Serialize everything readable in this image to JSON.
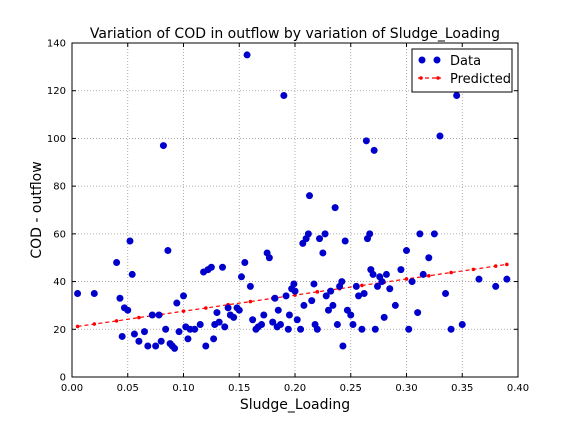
{
  "chart_data": {
    "type": "scatter",
    "title": "Variation of COD in outflow by variation of Sludge_Loading",
    "xlabel": "Sludge_Loading",
    "ylabel": "COD - outflow",
    "xlim": [
      0.0,
      0.4
    ],
    "ylim": [
      0,
      140
    ],
    "xticks": [
      "0.00",
      "0.05",
      "0.10",
      "0.15",
      "0.20",
      "0.25",
      "0.30",
      "0.35",
      "0.40"
    ],
    "yticks": [
      "0",
      "20",
      "40",
      "60",
      "80",
      "100",
      "120",
      "140"
    ],
    "grid": true,
    "legend_position": "top-right",
    "colors": {
      "data": "#0000cc",
      "predicted": "#ff0000"
    },
    "series": [
      {
        "name": "Data",
        "style": "markers",
        "points": [
          [
            0.005,
            35
          ],
          [
            0.02,
            35
          ],
          [
            0.04,
            48
          ],
          [
            0.043,
            33
          ],
          [
            0.045,
            17
          ],
          [
            0.047,
            29
          ],
          [
            0.05,
            28
          ],
          [
            0.052,
            57
          ],
          [
            0.054,
            43
          ],
          [
            0.056,
            18
          ],
          [
            0.06,
            15
          ],
          [
            0.065,
            19
          ],
          [
            0.068,
            13
          ],
          [
            0.072,
            26
          ],
          [
            0.075,
            13
          ],
          [
            0.078,
            26
          ],
          [
            0.08,
            15
          ],
          [
            0.082,
            97
          ],
          [
            0.084,
            20
          ],
          [
            0.086,
            53
          ],
          [
            0.088,
            14
          ],
          [
            0.09,
            13
          ],
          [
            0.092,
            12
          ],
          [
            0.094,
            31
          ],
          [
            0.096,
            19
          ],
          [
            0.1,
            34
          ],
          [
            0.102,
            21
          ],
          [
            0.104,
            16
          ],
          [
            0.106,
            20
          ],
          [
            0.11,
            20
          ],
          [
            0.115,
            22
          ],
          [
            0.118,
            44
          ],
          [
            0.12,
            13
          ],
          [
            0.122,
            45
          ],
          [
            0.125,
            46
          ],
          [
            0.127,
            16
          ],
          [
            0.128,
            22
          ],
          [
            0.13,
            27
          ],
          [
            0.132,
            23
          ],
          [
            0.135,
            46
          ],
          [
            0.137,
            21
          ],
          [
            0.14,
            29
          ],
          [
            0.142,
            26
          ],
          [
            0.145,
            25
          ],
          [
            0.148,
            29
          ],
          [
            0.15,
            28
          ],
          [
            0.152,
            42
          ],
          [
            0.155,
            48
          ],
          [
            0.157,
            135
          ],
          [
            0.16,
            38
          ],
          [
            0.162,
            24
          ],
          [
            0.165,
            20
          ],
          [
            0.167,
            21
          ],
          [
            0.17,
            22
          ],
          [
            0.172,
            26
          ],
          [
            0.175,
            52
          ],
          [
            0.177,
            50
          ],
          [
            0.18,
            23
          ],
          [
            0.182,
            33
          ],
          [
            0.184,
            21
          ],
          [
            0.185,
            28
          ],
          [
            0.187,
            22
          ],
          [
            0.19,
            118
          ],
          [
            0.192,
            34
          ],
          [
            0.194,
            20
          ],
          [
            0.195,
            26
          ],
          [
            0.197,
            37
          ],
          [
            0.199,
            39
          ],
          [
            0.2,
            36
          ],
          [
            0.202,
            24
          ],
          [
            0.205,
            20
          ],
          [
            0.207,
            56
          ],
          [
            0.208,
            30
          ],
          [
            0.21,
            58
          ],
          [
            0.212,
            60
          ],
          [
            0.213,
            76
          ],
          [
            0.215,
            32
          ],
          [
            0.217,
            39
          ],
          [
            0.218,
            22
          ],
          [
            0.22,
            20
          ],
          [
            0.222,
            58
          ],
          [
            0.225,
            52
          ],
          [
            0.227,
            60
          ],
          [
            0.228,
            34
          ],
          [
            0.23,
            28
          ],
          [
            0.232,
            36
          ],
          [
            0.234,
            30
          ],
          [
            0.236,
            71
          ],
          [
            0.238,
            22
          ],
          [
            0.24,
            38
          ],
          [
            0.242,
            40
          ],
          [
            0.243,
            13
          ],
          [
            0.245,
            57
          ],
          [
            0.247,
            28
          ],
          [
            0.25,
            26
          ],
          [
            0.252,
            22
          ],
          [
            0.255,
            38
          ],
          [
            0.257,
            34
          ],
          [
            0.26,
            20
          ],
          [
            0.262,
            35
          ],
          [
            0.264,
            99
          ],
          [
            0.265,
            58
          ],
          [
            0.267,
            60
          ],
          [
            0.268,
            45
          ],
          [
            0.27,
            43
          ],
          [
            0.271,
            95
          ],
          [
            0.272,
            20
          ],
          [
            0.274,
            38
          ],
          [
            0.276,
            42
          ],
          [
            0.278,
            40
          ],
          [
            0.28,
            25
          ],
          [
            0.282,
            43
          ],
          [
            0.285,
            37
          ],
          [
            0.29,
            30
          ],
          [
            0.295,
            45
          ],
          [
            0.3,
            53
          ],
          [
            0.302,
            20
          ],
          [
            0.305,
            40
          ],
          [
            0.31,
            27
          ],
          [
            0.312,
            60
          ],
          [
            0.315,
            43
          ],
          [
            0.32,
            50
          ],
          [
            0.325,
            60
          ],
          [
            0.33,
            101
          ],
          [
            0.335,
            35
          ],
          [
            0.34,
            20
          ],
          [
            0.345,
            118
          ],
          [
            0.35,
            22
          ],
          [
            0.365,
            41
          ],
          [
            0.38,
            38
          ],
          [
            0.39,
            41
          ]
        ]
      },
      {
        "name": "Predicted",
        "style": "dashed-line-with-markers",
        "x": [
          0.005,
          0.02,
          0.04,
          0.06,
          0.08,
          0.1,
          0.12,
          0.14,
          0.16,
          0.18,
          0.2,
          0.22,
          0.24,
          0.26,
          0.28,
          0.3,
          0.32,
          0.34,
          0.36,
          0.38,
          0.39
        ],
        "y": [
          21.2,
          22.2,
          23.5,
          24.9,
          26.2,
          27.6,
          28.9,
          30.3,
          31.6,
          33.0,
          34.3,
          35.7,
          37.0,
          38.4,
          39.7,
          41.1,
          42.4,
          43.8,
          45.1,
          46.5,
          47.2
        ]
      }
    ]
  }
}
